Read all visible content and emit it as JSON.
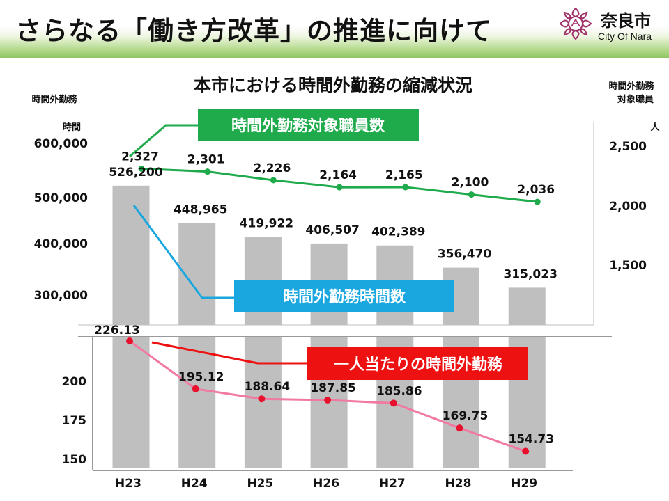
{
  "header": {
    "title": "さらなる「働き方改革」の推進に向けて",
    "city_name": "奈良市",
    "city_sub": "City Of Nara"
  },
  "chart_data": {
    "title": "本市における時間外勤務の縮減状況",
    "categories": [
      "H23",
      "H24",
      "H25",
      "H26",
      "H27",
      "H28",
      "H29"
    ],
    "left_axis": {
      "label": "時間外勤務",
      "unit": "時間",
      "ticks": [
        "600,000",
        "500,000",
        "400,000",
        "300,000"
      ]
    },
    "right_axis": {
      "label_line1": "時間外勤務",
      "label_line2": "対象職員",
      "unit": "人",
      "ticks": [
        "2,500",
        "2,000",
        "1,500"
      ]
    },
    "lower_axis": {
      "ticks": [
        "200",
        "175",
        "150"
      ]
    },
    "series": [
      {
        "name": "時間外勤務時間数",
        "type": "bar",
        "color": "#bfbfbf",
        "values": [
          526200,
          448965,
          419922,
          406507,
          402389,
          356470,
          315023
        ],
        "labels": [
          "526,200",
          "448,965",
          "419,922",
          "406,507",
          "402,389",
          "356,470",
          "315,023"
        ],
        "callout_color": "#1aa7e0"
      },
      {
        "name": "時間外勤務対象職員数",
        "type": "line",
        "color": "#1faa4b",
        "values": [
          2327,
          2301,
          2226,
          2164,
          2165,
          2100,
          2036
        ],
        "labels": [
          "2,327",
          "2,301",
          "2,226",
          "2,164",
          "2,165",
          "2,100",
          "2,036"
        ],
        "callout_color": "#1faa4b"
      },
      {
        "name": "一人当たりの時間外勤務",
        "type": "line",
        "color": "#f07aa0",
        "marker_color": "#e8112d",
        "values": [
          226.13,
          195.12,
          188.64,
          187.85,
          185.86,
          169.75,
          154.73
        ],
        "labels": [
          "226.13",
          "195.12",
          "188.64",
          "187.85",
          "185.86",
          "169.75",
          "154.73"
        ],
        "callout_color": "#ee1111"
      }
    ]
  }
}
